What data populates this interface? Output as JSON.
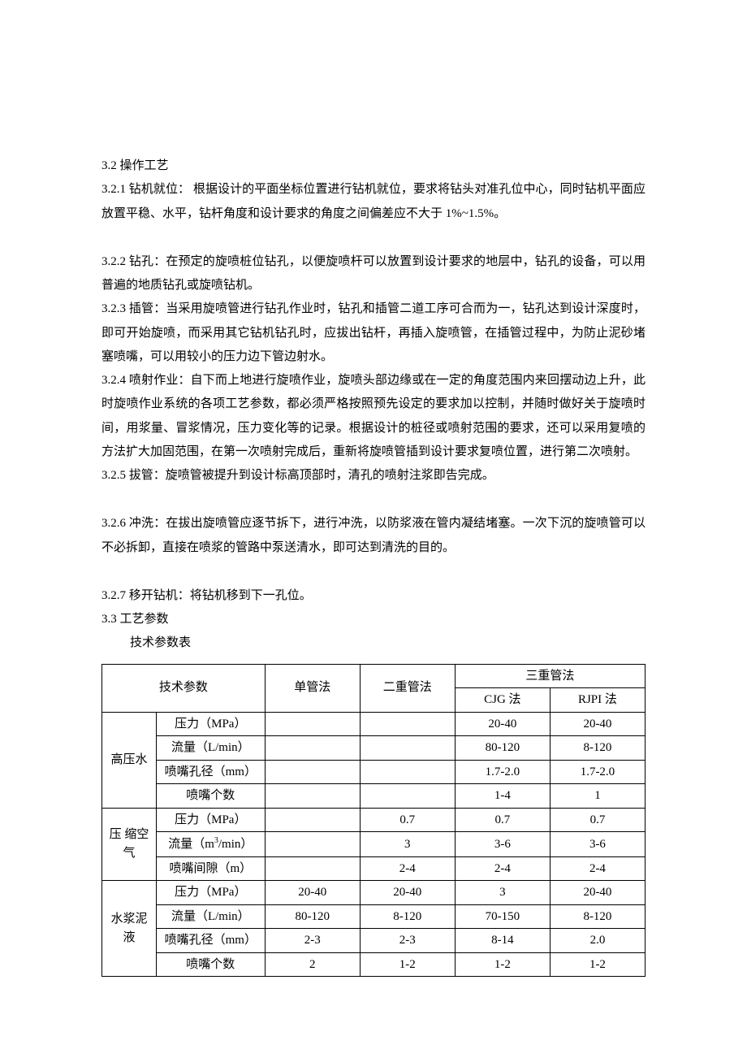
{
  "section_3_2_title": "3.2  操作工艺",
  "section_3_2_1": "3.2.1  钻机就位：  根据设计的平面坐标位置进行钻机就位，要求将钻头对准孔位中心，同时钻机平面应放置平稳、水平，钻杆角度和设计要求的角度之间偏差应不大于 1%~1.5%。",
  "section_3_2_2": "3.2.2  钻孔：在预定的旋喷桩位钻孔，以便旋喷杆可以放置到设计要求的地层中，钻孔的设备，可以用普遍的地质钻孔或旋喷钻机。",
  "section_3_2_3": "3.2.3  插管：当采用旋喷管进行钻孔作业时，钻孔和插管二道工序可合而为一，钻孔达到设计深度时，即可开始旋喷，而采用其它钻机钻孔时，应拔出钻杆，再插入旋喷管，在插管过程中，为防止泥砂堵塞喷嘴，可以用较小的压力边下管边射水。",
  "section_3_2_4": "3.2.4  喷射作业：自下而上地进行旋喷作业，旋喷头部边缘或在一定的角度范围内来回摆动边上升，此时旋喷作业系统的各项工艺参数，都必须严格按照预先设定的要求加以控制，并随时做好关于旋喷时间，用浆量、冒浆情况，压力变化等的记录。根据设计的桩径或喷射范围的要求，还可以采用复喷的方法扩大加固范围，在第一次喷射完成后，重新将旋喷管插到设计要求复喷位置，进行第二次喷射。",
  "section_3_2_5": "3.2.5  拔管：旋喷管被提升到设计标高顶部时，清孔的喷射注浆即告完成。",
  "section_3_2_6": "3.2.6  冲洗：在拔出旋喷管应逐节拆下，进行冲洗，以防浆液在管内凝结堵塞。一次下沉的旋喷管可以不必拆卸，直接在喷浆的管路中泵送清水，即可达到清洗的目的。",
  "section_3_2_7": "3.2.7  移开钻机：将钻机移到下一孔位。",
  "section_3_3_title": "3.3  工艺参数",
  "table_title": "技术参数表",
  "table": {
    "header_tech_param": "技术参数",
    "header_single": "单管法",
    "header_double": "二重管法",
    "header_triple": "三重管法",
    "header_cjg": "CJG 法",
    "header_rjpi": "RJPI 法",
    "groups": [
      {
        "name": "高压水",
        "rows": [
          {
            "param": "压力（MPa）",
            "single": "",
            "double": "",
            "cjg": "20-40",
            "rjpi": "20-40"
          },
          {
            "param": "流量（L/min）",
            "single": "",
            "double": "",
            "cjg": "80-120",
            "rjpi": "8-120"
          },
          {
            "param": "喷嘴孔径（mm）",
            "single": "",
            "double": "",
            "cjg": "1.7-2.0",
            "rjpi": "1.7-2.0"
          },
          {
            "param": "喷嘴个数",
            "single": "",
            "double": "",
            "cjg": "1-4",
            "rjpi": "1"
          }
        ]
      },
      {
        "name": "压 缩空气",
        "rows": [
          {
            "param": "压力（MPa）",
            "single": "",
            "double": "0.7",
            "cjg": "0.7",
            "rjpi": "0.7"
          },
          {
            "param": "流量（m³/min）",
            "single": "",
            "double": "3",
            "cjg": "3-6",
            "rjpi": "3-6"
          },
          {
            "param": "喷嘴间隙（m）",
            "single": "",
            "double": "2-4",
            "cjg": "2-4",
            "rjpi": "2-4"
          }
        ]
      },
      {
        "name": "水浆泥液",
        "rows": [
          {
            "param": "压力（MPa）",
            "single": "20-40",
            "double": "20-40",
            "cjg": "3",
            "rjpi": "20-40"
          },
          {
            "param": "流量（L/min）",
            "single": "80-120",
            "double": "8-120",
            "cjg": "70-150",
            "rjpi": "8-120"
          },
          {
            "param": "喷嘴孔径（mm）",
            "single": "2-3",
            "double": "2-3",
            "cjg": "8-14",
            "rjpi": "2.0"
          },
          {
            "param": "喷嘴个数",
            "single": "2",
            "double": "1-2",
            "cjg": "1-2",
            "rjpi": "1-2"
          }
        ]
      }
    ]
  }
}
